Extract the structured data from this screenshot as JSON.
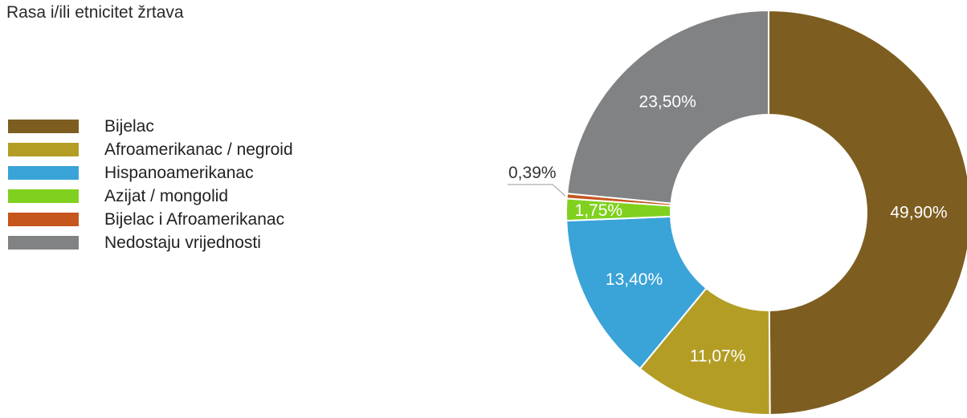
{
  "title": "Rasa i/ili etnicitet žrtava",
  "chart_data": {
    "type": "pie",
    "title": "Rasa i/ili etnicitet žrtava",
    "legend_position": "left",
    "donut": true,
    "slices": [
      {
        "name": "Bijelac",
        "value": 49.9,
        "label": "49,90%",
        "color": "#7d5e20"
      },
      {
        "name": "Afroamerikanac / negroid",
        "value": 11.07,
        "label": "11,07%",
        "color": "#b39d25"
      },
      {
        "name": "Hispanoamerikanac",
        "value": 13.4,
        "label": "13,40%",
        "color": "#3aa3d8"
      },
      {
        "name": "Azijat / mongolid",
        "value": 1.75,
        "label": "1,75%",
        "color": "#80d11f"
      },
      {
        "name": "Bijelac i Afroamerikanac",
        "value": 0.39,
        "label": "0,39%",
        "color": "#c5561c"
      },
      {
        "name": "Nedostaju vrijednosti",
        "value": 23.5,
        "label": "23,50%",
        "color": "#808284"
      }
    ]
  }
}
